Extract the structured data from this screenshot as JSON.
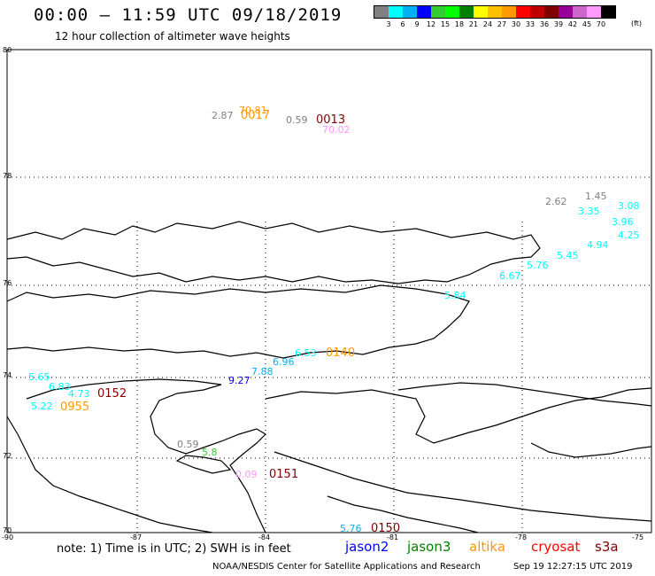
{
  "header": {
    "title": "00:00 – 11:59 UTC 09/18/2019",
    "subtitle": "12 hour collection of altimeter wave heights"
  },
  "legend": {
    "colors": [
      "#808080",
      "#00ffff",
      "#00b0f0",
      "#0000ff",
      "#33cc33",
      "#00ff00",
      "#008000",
      "#ffff00",
      "#ffc000",
      "#ff9900",
      "#ff0000",
      "#c00000",
      "#800000",
      "#990099",
      "#cc66cc",
      "#ff99ff",
      "#000000"
    ],
    "labels": [
      "3",
      "6",
      "9",
      "12",
      "15",
      "18",
      "21",
      "24",
      "27",
      "30",
      "33",
      "36",
      "39",
      "42",
      "45",
      "70"
    ],
    "unit": "(ft)"
  },
  "axes": {
    "lat_labels": [
      "80",
      "78",
      "76",
      "74",
      "72",
      "70"
    ],
    "lon_labels": [
      "-90",
      "-87",
      "-84",
      "-81",
      "-78",
      "-75"
    ]
  },
  "observations": [
    {
      "text": "2.87",
      "color": "#808080"
    },
    {
      "text": "70.81",
      "color": "#ff9900"
    },
    {
      "text": "0017",
      "color": "#ff9900"
    },
    {
      "text": "0.59",
      "color": "#808080"
    },
    {
      "text": "0013",
      "color": "#800000"
    },
    {
      "text": "70.02",
      "color": "#ff99ff"
    },
    {
      "text": "2.62",
      "color": "#808080"
    },
    {
      "text": "1.45",
      "color": "#808080"
    },
    {
      "text": "3.08",
      "color": "#00ffff"
    },
    {
      "text": "3.35",
      "color": "#00ffff"
    },
    {
      "text": "3.96",
      "color": "#00ffff"
    },
    {
      "text": "4.25",
      "color": "#00ffff"
    },
    {
      "text": "4.94",
      "color": "#00ffff"
    },
    {
      "text": "5.45",
      "color": "#00ffff"
    },
    {
      "text": "5.76",
      "color": "#00ffff"
    },
    {
      "text": "6.67",
      "color": "#00ffff"
    },
    {
      "text": "5.84",
      "color": "#00ffff"
    },
    {
      "text": "6.53",
      "color": "#00ffff"
    },
    {
      "text": "0140",
      "color": "#ff9900"
    },
    {
      "text": "6.96",
      "color": "#00b0f0"
    },
    {
      "text": "7.88",
      "color": "#00b0f0"
    },
    {
      "text": "9.27",
      "color": "#0000ff"
    },
    {
      "text": "5.65",
      "color": "#00ffff"
    },
    {
      "text": "6.83",
      "color": "#00ffff"
    },
    {
      "text": "4.73",
      "color": "#00ffff"
    },
    {
      "text": "0152",
      "color": "#800000"
    },
    {
      "text": "5.22",
      "color": "#00ffff"
    },
    {
      "text": "0955",
      "color": "#ff9900"
    },
    {
      "text": "0.59",
      "color": "#808080"
    },
    {
      "text": "5.8",
      "color": "#33cc33"
    },
    {
      "text": "0.09",
      "color": "#ff99ff"
    },
    {
      "text": "0151",
      "color": "#800000"
    },
    {
      "text": "5.76",
      "color": "#00b0f0"
    },
    {
      "text": "0150",
      "color": "#800000"
    }
  ],
  "footer": {
    "note": "note: 1) Time is in UTC; 2) SWH is in feet",
    "satellites": [
      {
        "name": "jason2",
        "color": "#0000ff"
      },
      {
        "name": "jason3",
        "color": "#008000"
      },
      {
        "name": "altika",
        "color": "#ff9900"
      },
      {
        "name": "cryosat",
        "color": "#ff0000"
      },
      {
        "name": "s3a",
        "color": "#800000"
      }
    ],
    "credit": "NOAA/NESDIS Center for Satellite Applications and Research",
    "stamp": "Sep 19 12:27:15 UTC 2019"
  }
}
